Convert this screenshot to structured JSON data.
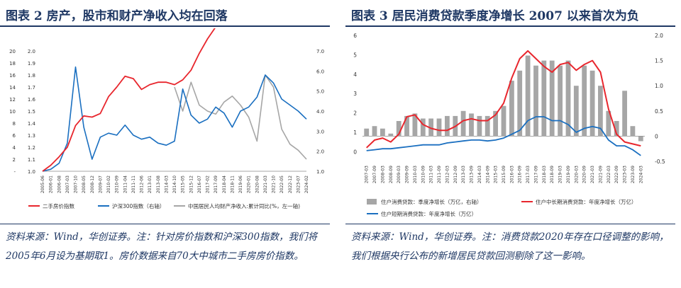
{
  "left": {
    "title": "图表 2   房产，股市和财产净收入均在回落",
    "source": "资料来源：Wind，华创证券。注：针对房价指数和沪深300指数，我们将2005年6月设为基期取1。房价数据来自70大中城市二手房房价指数。",
    "chart_data": {
      "type": "line",
      "x": [
        "2005-06",
        "2006-01",
        "2006-08",
        "2007-03",
        "2007-10",
        "2008-05",
        "2008-12",
        "2009-07",
        "2010-02",
        "2010-09",
        "2011-04",
        "2011-11",
        "2012-06",
        "2013-01",
        "2013-08",
        "2014-03",
        "2014-10",
        "2015-05",
        "2015-12",
        "2016-07",
        "2017-02",
        "2017-09",
        "2018-04",
        "2018-11",
        "2019-06",
        "2020-01",
        "2020-08",
        "2021-03",
        "2021-10",
        "2022-05",
        "2022-12",
        "2023-07",
        "2024-02"
      ],
      "series": [
        {
          "name": "二手房价指数",
          "axis": "left",
          "color": "#e8262d",
          "values": [
            1.0,
            1.05,
            1.12,
            1.2,
            1.38,
            1.46,
            1.45,
            1.48,
            1.62,
            1.7,
            1.79,
            1.77,
            1.68,
            1.72,
            1.74,
            1.74,
            1.72,
            1.76,
            1.84,
            1.98,
            2.1,
            2.2,
            2.3,
            2.38,
            2.42,
            2.48,
            2.62,
            2.75,
            2.8,
            2.78,
            2.7,
            2.58,
            2.42
          ]
        },
        {
          "name": "沪深300指数（右轴）",
          "axis": "right",
          "color": "#1a6fc0",
          "values": [
            1.0,
            1.1,
            1.4,
            2.4,
            6.2,
            3.2,
            1.6,
            2.7,
            2.9,
            2.8,
            3.3,
            2.8,
            2.6,
            2.7,
            2.4,
            2.3,
            2.5,
            5.1,
            3.8,
            3.4,
            3.6,
            4.2,
            3.9,
            3.2,
            4.0,
            4.2,
            4.7,
            5.8,
            5.4,
            4.6,
            4.3,
            4.0,
            3.6
          ]
        },
        {
          "name": "中国居民人均财产净收入:累计同比(%，左一轴)",
          "axis": "left",
          "color": "#a6a6a6",
          "values": [
            null,
            null,
            null,
            null,
            null,
            null,
            null,
            null,
            null,
            null,
            null,
            null,
            null,
            null,
            null,
            null,
            14.0,
            10.0,
            14.8,
            11.0,
            10.0,
            9.5,
            11.5,
            12.5,
            11.0,
            9.0,
            5.0,
            16.0,
            14.0,
            7.0,
            4.5,
            3.5,
            2.0
          ]
        }
      ],
      "yleft_ticks": [
        "20",
        "18",
        "16",
        "14",
        "12",
        "10",
        "8",
        "6",
        "4",
        "2",
        "-"
      ],
      "yleft_mid_ticks": [
        "2.0",
        "1.9",
        "1.8",
        "1.7",
        "1.6",
        "1.5",
        "1.4",
        "1.3",
        "1.2",
        "1.1",
        "1.0"
      ],
      "yright_ticks": [
        "7.0",
        "6.0",
        "5.0",
        "4.0",
        "3.0",
        "2.0",
        "1.0"
      ],
      "ylim_left": [
        1.0,
        2.0
      ],
      "ylim_right": [
        1.0,
        7.0
      ],
      "ylim_income": [
        0,
        20
      ],
      "legend": [
        "二手房价指数",
        "沪深300指数（右轴）",
        "中国居民人均财产净收入:累计同比(%，左一轴)"
      ]
    }
  },
  "right": {
    "title": "图表 3   居民消费贷款季度净增长 2007 以来首次为负",
    "source": "资料来源：Wind，华创证券。注：消费贷款2020年存在口径调整的影响，我们根据央行公布的新增居民贷款回测剔除了这一影响。",
    "chart_data": {
      "type": "bar",
      "x": [
        "2007-03",
        "2007-09",
        "2008-03",
        "2008-09",
        "2009-03",
        "2009-09",
        "2010-03",
        "2010-09",
        "2011-03",
        "2011-09",
        "2012-03",
        "2012-09",
        "2013-03",
        "2013-09",
        "2014-03",
        "2014-09",
        "2015-03",
        "2015-09",
        "2016-03",
        "2016-09",
        "2017-03",
        "2017-09",
        "2018-03",
        "2018-09",
        "2019-03",
        "2019-09",
        "2020-03",
        "2020-09",
        "2021-03",
        "2021-09",
        "2022-03",
        "2022-09",
        "2023-03",
        "2023-09",
        "2024-03"
      ],
      "series": [
        {
          "name": "住户消费贷款：季度净增长（万亿，右轴）",
          "type": "bar",
          "axis": "right",
          "color": "#a6a6a6",
          "values": [
            0.15,
            0.2,
            0.15,
            0.05,
            0.3,
            0.4,
            0.45,
            0.35,
            0.35,
            0.35,
            0.4,
            0.4,
            0.5,
            0.45,
            0.4,
            0.4,
            0.5,
            0.6,
            1.1,
            1.3,
            1.6,
            1.4,
            1.5,
            1.5,
            1.4,
            1.5,
            1.0,
            1.4,
            1.3,
            1.0,
            0.5,
            0.3,
            0.9,
            0.2,
            -0.1
          ]
        },
        {
          "name": "住户中长期消费贷款：年度净增长（万亿）",
          "type": "line",
          "axis": "left",
          "color": "#e8262d",
          "values": [
            0.2,
            0.6,
            0.7,
            0.5,
            0.9,
            1.8,
            1.9,
            1.4,
            1.2,
            1.1,
            1.1,
            1.3,
            1.6,
            1.7,
            1.6,
            1.6,
            1.9,
            2.5,
            3.8,
            4.8,
            5.2,
            4.8,
            4.4,
            4.1,
            4.5,
            4.6,
            4.2,
            4.5,
            4.7,
            4.1,
            2.2,
            0.9,
            0.5,
            0.4,
            0.3
          ]
        },
        {
          "name": "住户短期消费贷款：年度净增长（万亿）",
          "type": "line",
          "axis": "left",
          "color": "#1a6fc0",
          "values": [
            0.05,
            0.1,
            0.15,
            0.15,
            0.2,
            0.25,
            0.3,
            0.35,
            0.35,
            0.35,
            0.45,
            0.5,
            0.55,
            0.6,
            0.6,
            0.55,
            0.6,
            0.7,
            0.9,
            1.1,
            1.6,
            1.8,
            1.8,
            1.6,
            1.6,
            1.4,
            1.0,
            1.2,
            1.3,
            1.2,
            0.6,
            0.3,
            0.3,
            0.1,
            -0.2
          ]
        }
      ],
      "yleft_ticks": [
        "6",
        "5",
        "4",
        "3",
        "2",
        "1",
        "0"
      ],
      "yright_ticks": [
        "2.0",
        "1.5",
        "1.0",
        "0.5",
        "0",
        "-0.5"
      ],
      "ylim_left": [
        -0.5,
        6.0
      ],
      "ylim_right": [
        -0.5,
        2.0
      ],
      "legend": [
        "住户消费贷款：季度净增长（万亿，右轴）",
        "住户中长期消费贷款：年度净增长（万亿）",
        "住户短期消费贷款：年度净增长（万亿）"
      ]
    }
  }
}
